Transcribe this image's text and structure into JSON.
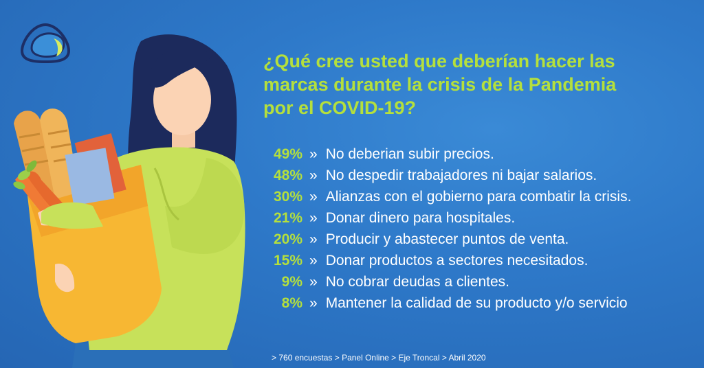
{
  "question": "¿Qué cree usted que deberían hacer las\nmarcas durante la crisis de la Pandemia\npor el COVID-19?",
  "separator": "»",
  "results": [
    {
      "percent": "49%",
      "label": "No deberian subir precios."
    },
    {
      "percent": "48%",
      "label": "No despedir trabajadores ni bajar salarios."
    },
    {
      "percent": "30%",
      "label": "Alianzas con el gobierno para combatir la crisis."
    },
    {
      "percent": "21%",
      "label": "Donar dinero para hospitales."
    },
    {
      "percent": "20%",
      "label": "Producir y abastecer puntos de venta."
    },
    {
      "percent": "15%",
      "label": "Donar productos a sectores necesitados."
    },
    {
      "percent": "9%",
      "label": "No cobrar deudas a clientes."
    },
    {
      "percent": "8%",
      "label": "Mantener la calidad de su producto y/o servicio"
    }
  ],
  "footer": "> 760 encuestas > Panel Online > Eje Troncal > Abril 2020",
  "colors": {
    "background": "#2e79c9",
    "accent": "#b5e03c",
    "text": "#ffffff"
  },
  "icons": [
    "logo-icon",
    "woman-with-grocery-bag-illustration"
  ]
}
